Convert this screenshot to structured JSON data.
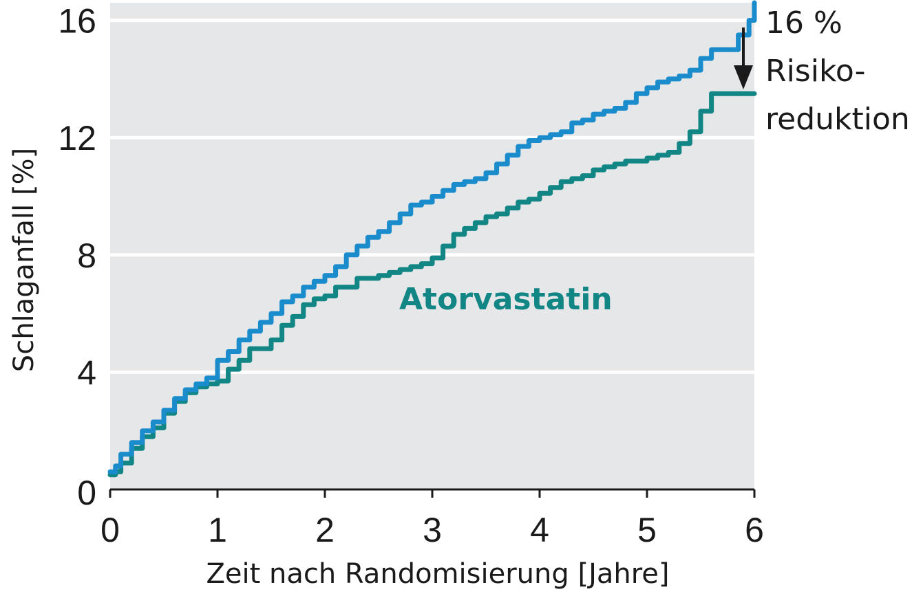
{
  "chart_data": {
    "type": "line",
    "title": "",
    "xlabel": "Zeit nach Randomisierung [Jahre]",
    "ylabel": "Schlaganfall [%]",
    "xlim": [
      0,
      6
    ],
    "ylim": [
      0,
      16.6
    ],
    "xticks": [
      "0",
      "1",
      "2",
      "3",
      "4",
      "5",
      "6"
    ],
    "yticks": [
      "0",
      "4",
      "8",
      "12",
      "16"
    ],
    "grid": "horizontal",
    "colors": {
      "plot_bg": "#e6e7e9",
      "grid": "#ffffff",
      "blue": "#1a8ccc",
      "teal": "#128585",
      "arrow": "#1a1a1a"
    },
    "series": [
      {
        "key": "blue",
        "name": "",
        "x": [
          0,
          0.05,
          0.1,
          0.2,
          0.3,
          0.4,
          0.5,
          0.6,
          0.7,
          0.8,
          0.9,
          1.0,
          1.1,
          1.2,
          1.3,
          1.4,
          1.5,
          1.6,
          1.7,
          1.8,
          1.9,
          2.0,
          2.1,
          2.2,
          2.3,
          2.4,
          2.5,
          2.6,
          2.7,
          2.8,
          2.9,
          3.0,
          3.1,
          3.2,
          3.3,
          3.4,
          3.5,
          3.6,
          3.7,
          3.8,
          3.9,
          4.0,
          4.1,
          4.2,
          4.3,
          4.4,
          4.5,
          4.6,
          4.7,
          4.8,
          4.9,
          5.0,
          5.1,
          5.2,
          5.3,
          5.4,
          5.5,
          5.6,
          5.7,
          5.8,
          5.85,
          5.95,
          6.0
        ],
        "y": [
          0.6,
          0.8,
          1.2,
          1.6,
          2.0,
          2.3,
          2.7,
          3.1,
          3.4,
          3.6,
          3.8,
          4.4,
          4.7,
          5.1,
          5.4,
          5.7,
          6.0,
          6.4,
          6.6,
          6.9,
          7.1,
          7.3,
          7.6,
          8.0,
          8.3,
          8.6,
          8.8,
          9.1,
          9.4,
          9.7,
          9.8,
          10.0,
          10.2,
          10.4,
          10.5,
          10.6,
          10.8,
          11.1,
          11.4,
          11.7,
          11.9,
          12.0,
          12.1,
          12.2,
          12.5,
          12.6,
          12.8,
          12.9,
          13.0,
          13.2,
          13.5,
          13.7,
          13.9,
          14.0,
          14.1,
          14.3,
          14.7,
          15.0,
          15.0,
          15.0,
          15.5,
          16.0,
          16.6
        ]
      },
      {
        "key": "teal",
        "name": "Atorvastatin",
        "x": [
          0,
          0.05,
          0.1,
          0.2,
          0.3,
          0.4,
          0.5,
          0.6,
          0.7,
          0.8,
          0.9,
          1.0,
          1.1,
          1.2,
          1.3,
          1.4,
          1.5,
          1.6,
          1.7,
          1.8,
          1.9,
          2.0,
          2.1,
          2.2,
          2.3,
          2.4,
          2.5,
          2.6,
          2.7,
          2.8,
          2.9,
          3.0,
          3.1,
          3.2,
          3.3,
          3.4,
          3.5,
          3.6,
          3.7,
          3.8,
          3.9,
          4.0,
          4.1,
          4.2,
          4.3,
          4.4,
          4.5,
          4.6,
          4.7,
          4.8,
          4.9,
          5.0,
          5.1,
          5.2,
          5.3,
          5.4,
          5.5,
          5.6,
          5.7,
          5.8,
          5.9,
          6.0
        ],
        "y": [
          0.5,
          0.6,
          0.9,
          1.4,
          1.8,
          2.1,
          2.6,
          3.0,
          3.3,
          3.5,
          3.6,
          3.7,
          4.1,
          4.4,
          4.8,
          4.8,
          5.1,
          5.6,
          5.9,
          6.3,
          6.5,
          6.6,
          6.9,
          6.9,
          7.2,
          7.2,
          7.3,
          7.4,
          7.5,
          7.6,
          7.7,
          7.9,
          8.3,
          8.7,
          8.9,
          9.1,
          9.3,
          9.4,
          9.6,
          9.8,
          9.9,
          10.1,
          10.3,
          10.5,
          10.6,
          10.7,
          10.9,
          11.0,
          11.1,
          11.2,
          11.2,
          11.3,
          11.4,
          11.5,
          11.8,
          12.2,
          12.9,
          13.5,
          13.5,
          13.5,
          13.5,
          13.5
        ]
      }
    ],
    "annotations": {
      "reduction_pct": "16 %",
      "reduction_line1": "Risiko-",
      "reduction_line2": "reduktion",
      "series_label": "Atorvastatin"
    }
  }
}
